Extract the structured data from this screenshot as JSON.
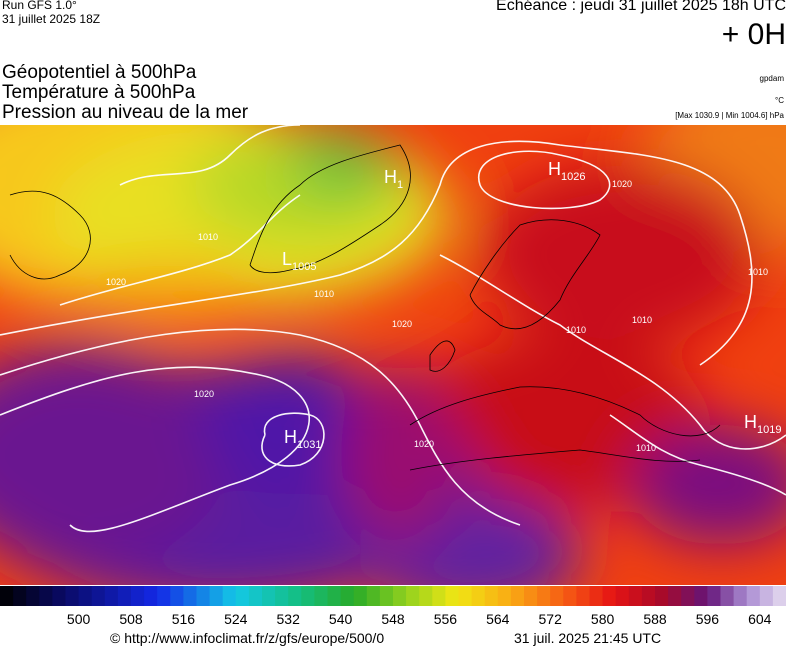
{
  "header": {
    "run": "Run GFS 1.0°",
    "run_date": "31 juillet 2025 18Z",
    "forecast": "Echéance : jeudi 31 juillet 2025 18h UTC",
    "lead": "+ 0H",
    "layers": [
      "Géopotentiel à 500hPa",
      "Température à 500hPa",
      "Pression au niveau de la mer"
    ],
    "units": [
      "gpdam",
      "°C",
      "[Max 1030.9 | Min 1004.6] hPa"
    ]
  },
  "map": {
    "centers": [
      {
        "letter": "H",
        "value": 1026
      },
      {
        "letter": "H",
        "value": 1031
      },
      {
        "letter": "H",
        "value": 1019
      },
      {
        "letter": "H",
        "value": 1
      },
      {
        "letter": "L",
        "value": 1005
      }
    ],
    "isobar_labels": [
      1010,
      1020,
      1010,
      1020,
      1020,
      1010,
      1010,
      1010,
      1020,
      1010,
      1020
    ]
  },
  "colorbar": {
    "range": [
      488,
      608
    ],
    "step": 2,
    "ticks": [
      500,
      508,
      516,
      524,
      532,
      540,
      548,
      556,
      564,
      572,
      580,
      588,
      596,
      604
    ]
  },
  "footer": {
    "source": "© http://www.infoclimat.fr/z/gfs/europe/500/0",
    "generated": "31 juil. 2025 21:45 UTC"
  }
}
